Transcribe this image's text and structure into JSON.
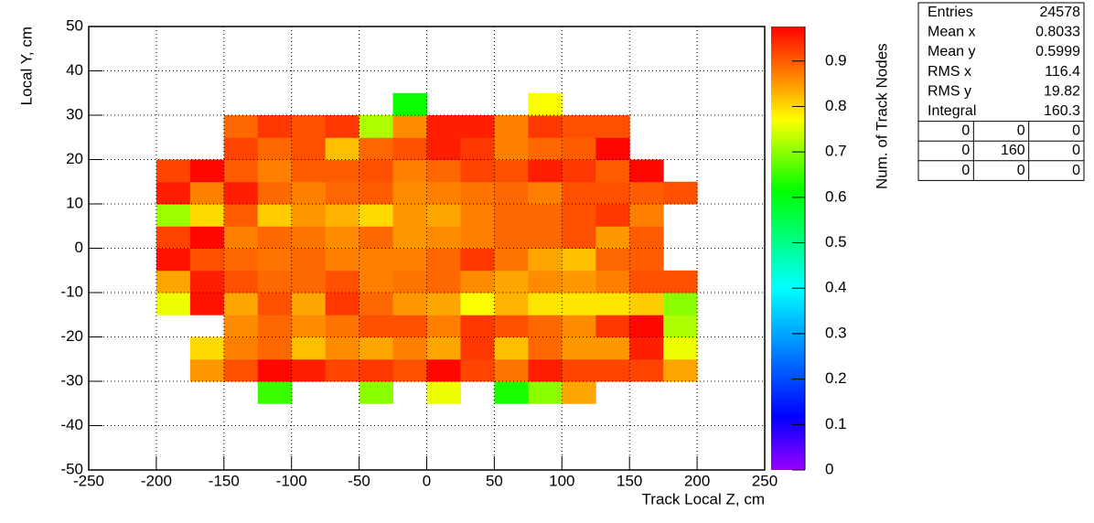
{
  "chart_data": {
    "type": "heatmap",
    "xlabel": "Track Local Z, cm",
    "ylabel": "Local Y, cm",
    "zlabel": "Num. of Track Nodes",
    "xbins": [
      -200,
      -175,
      -150,
      -125,
      -100,
      -75,
      -50,
      -25,
      0,
      25,
      50,
      75,
      100,
      125,
      150,
      175,
      200
    ],
    "ybins": [
      -35,
      -30,
      -25,
      -20,
      -15,
      -10,
      -5,
      0,
      5,
      10,
      15,
      20,
      25,
      30,
      35
    ],
    "z": [
      [
        null,
        null,
        null,
        0.65,
        null,
        null,
        0.7,
        null,
        0.76,
        null,
        0.63,
        0.7,
        0.84,
        null,
        null,
        null
      ],
      [
        null,
        0.85,
        0.91,
        0.97,
        0.95,
        0.92,
        0.93,
        0.91,
        0.97,
        0.92,
        0.88,
        0.95,
        0.92,
        0.92,
        0.92,
        0.84
      ],
      [
        null,
        0.8,
        0.87,
        0.89,
        0.82,
        0.86,
        0.84,
        0.87,
        0.84,
        0.93,
        0.82,
        0.89,
        0.85,
        0.85,
        0.95,
        0.76
      ],
      [
        null,
        null,
        0.86,
        0.89,
        0.86,
        0.88,
        0.91,
        0.91,
        0.87,
        0.93,
        0.91,
        0.89,
        0.86,
        0.93,
        0.97,
        0.72
      ],
      [
        0.76,
        0.96,
        0.84,
        0.91,
        0.84,
        0.93,
        0.89,
        0.85,
        0.84,
        0.77,
        0.83,
        0.79,
        0.79,
        0.79,
        0.81,
        0.7
      ],
      [
        0.84,
        0.95,
        0.91,
        0.89,
        0.89,
        0.91,
        0.87,
        0.88,
        0.89,
        0.86,
        0.84,
        0.86,
        0.85,
        0.87,
        0.91,
        0.91
      ],
      [
        0.96,
        0.91,
        0.89,
        0.88,
        0.89,
        0.87,
        0.87,
        0.87,
        0.89,
        0.93,
        0.88,
        0.84,
        0.82,
        0.89,
        0.9,
        null
      ],
      [
        0.92,
        0.97,
        0.87,
        0.89,
        0.88,
        0.86,
        0.89,
        0.85,
        0.86,
        0.87,
        0.89,
        0.89,
        0.91,
        0.85,
        0.9,
        null
      ],
      [
        0.71,
        0.8,
        0.9,
        0.81,
        0.85,
        0.83,
        0.8,
        0.85,
        0.84,
        0.87,
        0.89,
        0.89,
        0.91,
        0.93,
        0.87,
        null
      ],
      [
        0.95,
        0.87,
        0.95,
        0.89,
        0.87,
        0.89,
        0.9,
        0.86,
        0.87,
        0.88,
        0.89,
        0.87,
        0.91,
        0.91,
        0.9,
        0.91
      ],
      [
        0.92,
        0.97,
        0.9,
        0.87,
        0.9,
        0.9,
        0.91,
        0.87,
        0.89,
        0.92,
        0.91,
        0.95,
        0.93,
        0.9,
        0.97,
        null
      ],
      [
        null,
        null,
        0.92,
        0.89,
        0.91,
        0.82,
        0.89,
        0.91,
        0.95,
        0.93,
        0.87,
        0.89,
        0.9,
        0.97,
        null,
        null
      ],
      [
        null,
        null,
        0.89,
        0.93,
        0.91,
        0.93,
        0.72,
        0.86,
        0.95,
        0.95,
        0.87,
        0.93,
        0.91,
        0.91,
        null,
        null
      ],
      [
        null,
        null,
        null,
        null,
        null,
        null,
        null,
        0.62,
        null,
        null,
        null,
        0.77,
        null,
        null,
        null,
        null
      ]
    ],
    "xlim": [
      -250,
      250
    ],
    "xticks": [
      -250,
      -200,
      -150,
      -100,
      -50,
      0,
      50,
      100,
      150,
      200,
      250
    ],
    "ylim": [
      -50,
      50
    ],
    "yticks": [
      -50,
      -40,
      -30,
      -20,
      -10,
      0,
      10,
      20,
      30,
      40,
      50
    ],
    "zlim": [
      0,
      0.976
    ],
    "zticks": [
      0,
      0.1,
      0.2,
      0.3,
      0.4,
      0.5,
      0.6,
      0.7,
      0.8,
      0.9
    ],
    "grid": true,
    "palette": [
      {
        "stop": 0,
        "color": "#9900ff"
      },
      {
        "stop": 0.12,
        "color": "#0000ff"
      },
      {
        "stop": 0.41,
        "color": "#00ffff"
      },
      {
        "stop": 0.63,
        "color": "#00ff00"
      },
      {
        "stop": 0.79,
        "color": "#ffff00"
      },
      {
        "stop": 0.87,
        "color": "#ff9900"
      },
      {
        "stop": 1,
        "color": "#ff0000"
      }
    ],
    "stats": {
      "rows": [
        {
          "label": "Entries",
          "value": "24578"
        },
        {
          "label": "Mean x",
          "value": "0.8033"
        },
        {
          "label": "Mean y",
          "value": "0.5999"
        },
        {
          "label": "RMS x",
          "value": "116.4"
        },
        {
          "label": "RMS y",
          "value": "19.82"
        },
        {
          "label": "Integral",
          "value": "160.3"
        }
      ],
      "grid": [
        [
          "0",
          "0",
          "0"
        ],
        [
          "0",
          "160",
          "0"
        ],
        [
          "0",
          "0",
          "0"
        ]
      ]
    }
  }
}
